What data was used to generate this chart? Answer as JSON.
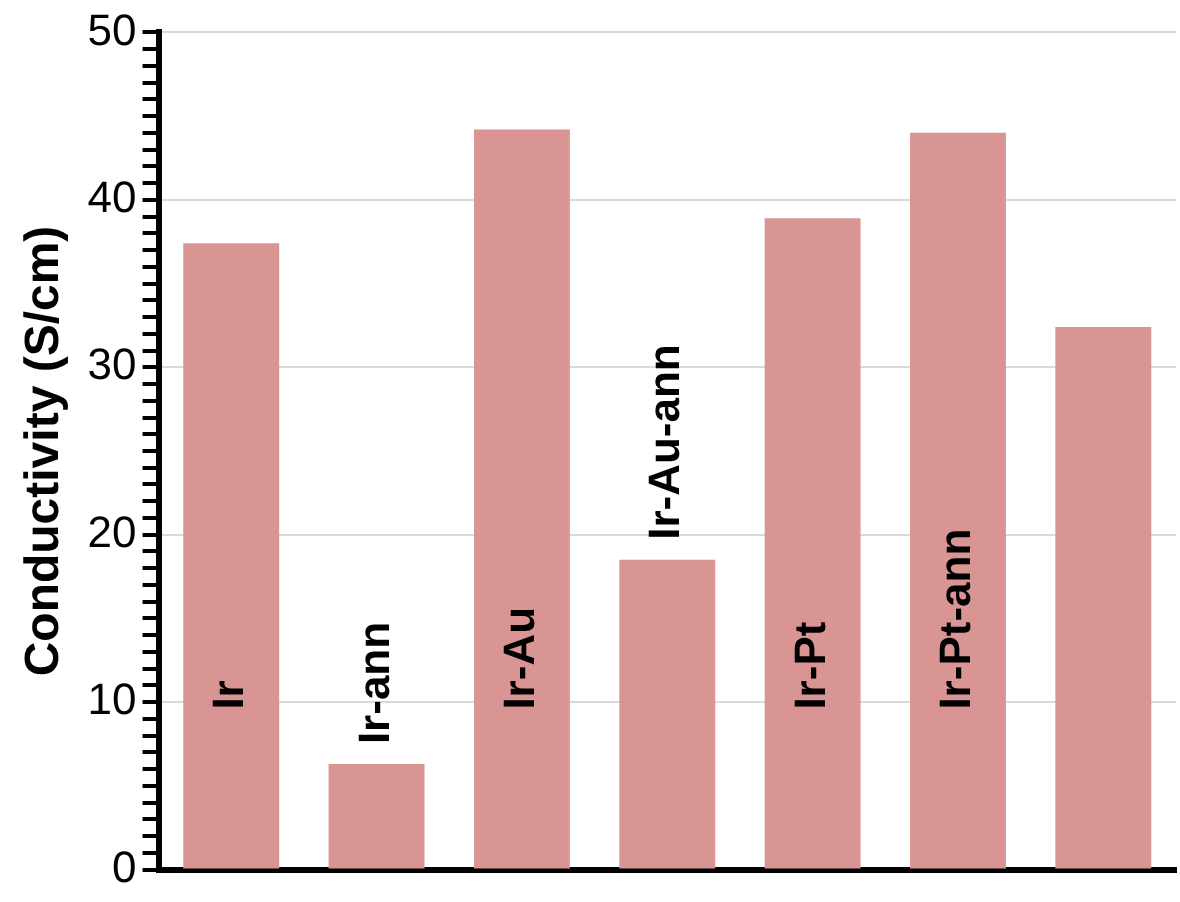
{
  "chart_data": {
    "type": "bar",
    "ylabel": "Conductivity (S/cm)",
    "categories": [
      "Ir",
      "Ir-ann",
      "Ir-Au",
      "Ir-Au-ann",
      "Ir-Pt",
      "Ir-Pt-ann",
      null
    ],
    "values": [
      37.4,
      6.3,
      44.2,
      18.5,
      38.9,
      44.0,
      32.4
    ],
    "color": "#d99594",
    "ylim": [
      0,
      50
    ],
    "yticks": [
      0,
      {
        "value": 1,
        "label": null
      },
      {
        "value": 2,
        "label": null
      },
      {
        "value": 3,
        "label": null
      },
      {
        "value": 4,
        "label": null
      },
      {
        "value": 5,
        "label": null
      },
      {
        "value": 6,
        "label": null
      },
      {
        "value": 7,
        "label": null
      },
      {
        "value": 8,
        "label": null
      },
      {
        "value": 9,
        "label": null
      },
      10,
      {
        "value": 11,
        "label": null
      },
      {
        "value": 12,
        "label": null
      },
      {
        "value": 13,
        "label": null
      },
      {
        "value": 14,
        "label": null
      },
      {
        "value": 15,
        "label": null
      },
      {
        "value": 16,
        "label": null
      },
      {
        "value": 17,
        "label": null
      },
      {
        "value": 18,
        "label": null
      },
      {
        "value": 19,
        "label": null
      },
      20,
      {
        "value": 21,
        "label": null
      },
      {
        "value": 22,
        "label": null
      },
      {
        "value": 23,
        "label": null
      },
      {
        "value": 24,
        "label": null
      },
      {
        "value": 25,
        "label": null
      },
      {
        "value": 26,
        "label": null
      },
      {
        "value": 27,
        "label": null
      },
      {
        "value": 28,
        "label": null
      },
      {
        "value": 29,
        "label": null
      },
      30,
      {
        "value": 31,
        "label": null
      },
      {
        "value": 32,
        "label": null
      },
      {
        "value": 33,
        "label": null
      },
      {
        "value": 34,
        "label": null
      },
      {
        "value": 35,
        "label": null
      },
      {
        "value": 36,
        "label": null
      },
      {
        "value": 37,
        "label": null
      },
      {
        "value": 38,
        "label": null
      },
      {
        "value": 39,
        "label": null
      },
      40,
      {
        "value": 41,
        "label": null
      },
      {
        "value": 42,
        "label": null
      },
      {
        "value": 43,
        "label": null
      },
      {
        "value": 44,
        "label": null
      },
      {
        "value": 45,
        "label": null
      },
      {
        "value": 46,
        "label": null
      },
      {
        "value": 47,
        "label": null
      },
      {
        "value": 48,
        "label": null
      },
      {
        "value": 49,
        "label": null
      },
      50
    ],
    "grid": "y",
    "legend": false
  }
}
